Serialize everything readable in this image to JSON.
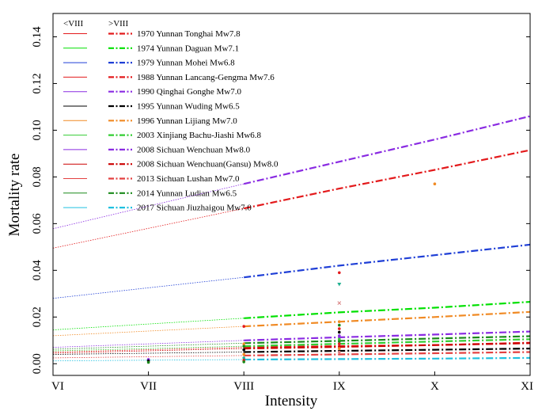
{
  "chart_data": {
    "type": "line",
    "title": "",
    "xlabel": "Intensity",
    "ylabel": "Mortality rate",
    "x_categories": [
      "VI",
      "VII",
      "VIII",
      "IX",
      "X",
      "XI"
    ],
    "ylim": [
      -0.005,
      0.15
    ],
    "yticks": [
      "0.00",
      "0.02",
      "0.04",
      "0.06",
      "0.08",
      "0.10",
      "0.12",
      "0.14"
    ],
    "legend_headers": {
      "below": "<VIII",
      "above": ">VIII"
    },
    "series": [
      {
        "name": "1970 Yunnan Tonghai Mw7.8",
        "color": "#e31a1c",
        "values": [
          0.0495,
          0.058,
          0.0665,
          0.075,
          0.083,
          0.0915
        ]
      },
      {
        "name": "1974 Yunnan Daguan Mw7.1",
        "color": "#00e000",
        "values": [
          0.0145,
          0.017,
          0.0195,
          0.022,
          0.024,
          0.0265
        ]
      },
      {
        "name": "1979 Yunnan Mohei Mw6.8",
        "color": "#1f3fd6",
        "values": [
          0.028,
          0.0325,
          0.037,
          0.042,
          0.0465,
          0.051
        ]
      },
      {
        "name": "1988 Yunnan Lancang-Gengma Mw7.6",
        "color": "#e31a1c",
        "values": [
          0.005,
          0.006,
          0.007,
          0.0075,
          0.008,
          0.009
        ]
      },
      {
        "name": "1990 Qinghai Gonghe Mw7.0",
        "color": "#8a2be2",
        "values": [
          0.0578,
          0.0675,
          0.077,
          0.0865,
          0.096,
          0.106
        ]
      },
      {
        "name": "1995 Yunnan Wuding Mw6.5",
        "color": "#000000",
        "values": [
          0.004,
          0.0045,
          0.005,
          0.0055,
          0.006,
          0.0065
        ]
      },
      {
        "name": "1996 Yunnan Lijiang Mw7.0",
        "color": "#f08a24",
        "values": [
          0.012,
          0.014,
          0.016,
          0.018,
          0.02,
          0.0222
        ]
      },
      {
        "name": "2003 Xinjiang Bachu-Jiashi Mw6.8",
        "color": "#32cd32",
        "values": [
          0.0055,
          0.0065,
          0.0075,
          0.0085,
          0.0095,
          0.0105
        ]
      },
      {
        "name": "2008 Sichuan Wenchuan Mw8.0",
        "color": "#8a2be2",
        "values": [
          0.007,
          0.0085,
          0.01,
          0.0113,
          0.0125,
          0.0138
        ]
      },
      {
        "name": "2008 Sichuan Wenchuan(Gansu) Mw8.0",
        "color": "#cc0000",
        "values": [
          0.0045,
          0.0055,
          0.0065,
          0.0072,
          0.008,
          0.0088
        ]
      },
      {
        "name": "2013 Sichuan Lushan Mw7.0",
        "color": "#e34040",
        "values": [
          0.0025,
          0.003,
          0.0035,
          0.004,
          0.0045,
          0.005
        ]
      },
      {
        "name": "2014 Yunnan Ludian Mw6.5",
        "color": "#1a8a1a",
        "values": [
          0.0062,
          0.0075,
          0.0088,
          0.0098,
          0.0108,
          0.0118
        ]
      },
      {
        "name": "2017 Sichuan Jiuzhaigou Mw7.0",
        "color": "#20c0e0",
        "values": [
          0.0012,
          0.0015,
          0.0018,
          0.002,
          0.0022,
          0.0025
        ]
      }
    ],
    "observations": [
      {
        "x": "X",
        "y": 0.077,
        "color": "#f08a24",
        "marker": "dot"
      },
      {
        "x": "IX",
        "y": 0.039,
        "color": "#e31a1c",
        "marker": "dot"
      },
      {
        "x": "IX",
        "y": 0.034,
        "color": "#20b090",
        "marker": "tri"
      },
      {
        "x": "IX",
        "y": 0.026,
        "color": "#d88080",
        "marker": "x"
      },
      {
        "x": "IX",
        "y": 0.018,
        "color": "#f08a24",
        "marker": "dot"
      },
      {
        "x": "IX",
        "y": 0.0165,
        "color": "#1a8a1a",
        "marker": "dot"
      },
      {
        "x": "IX",
        "y": 0.015,
        "color": "#e31a1c",
        "marker": "dot"
      },
      {
        "x": "IX",
        "y": 0.0135,
        "color": "#000000",
        "marker": "dot"
      },
      {
        "x": "IX",
        "y": 0.012,
        "color": "#8a2be2",
        "marker": "dot"
      },
      {
        "x": "IX",
        "y": 0.0105,
        "color": "#32cd32",
        "marker": "dot"
      },
      {
        "x": "IX",
        "y": 0.0095,
        "color": "#1a8a1a",
        "marker": "dot"
      },
      {
        "x": "IX",
        "y": 0.0085,
        "color": "#e31a1c",
        "marker": "dot"
      },
      {
        "x": "IX",
        "y": 0.0065,
        "color": "#f08a24",
        "marker": "dot"
      },
      {
        "x": "IX",
        "y": 0.005,
        "color": "#d88080",
        "marker": "dot"
      },
      {
        "x": "VIII",
        "y": 0.016,
        "color": "#e31a1c",
        "marker": "dot"
      },
      {
        "x": "VIII",
        "y": 0.0085,
        "color": "#f08a24",
        "marker": "dot"
      },
      {
        "x": "VIII",
        "y": 0.0075,
        "color": "#1a8a1a",
        "marker": "dot"
      },
      {
        "x": "VIII",
        "y": 0.006,
        "color": "#000000",
        "marker": "dot"
      },
      {
        "x": "VIII",
        "y": 0.004,
        "color": "#f08a24",
        "marker": "dot"
      },
      {
        "x": "VIII",
        "y": 0.0025,
        "color": "#20b090",
        "marker": "dot"
      },
      {
        "x": "VIII",
        "y": 0.0015,
        "color": "#e31a1c",
        "marker": "dot"
      },
      {
        "x": "VIII",
        "y": 0.0008,
        "color": "#1a8a1a",
        "marker": "dot"
      },
      {
        "x": "VII",
        "y": 0.0018,
        "color": "#8a2be2",
        "marker": "dot"
      },
      {
        "x": "VII",
        "y": 0.0012,
        "color": "#000000",
        "marker": "dot"
      },
      {
        "x": "VII",
        "y": 0.0006,
        "color": "#1a8a1a",
        "marker": "dot"
      }
    ]
  }
}
